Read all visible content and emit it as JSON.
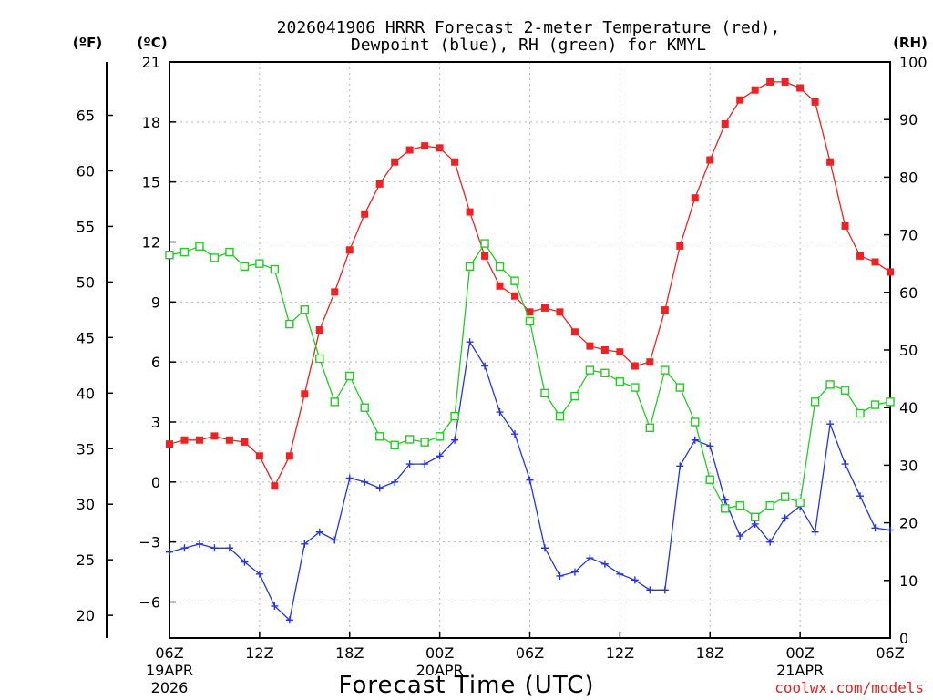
{
  "chart_data": {
    "type": "line",
    "title_line1": "2026041906 HRRR Forecast 2-meter Temperature (red),",
    "title_line2": "Dewpoint (blue), RH (green) for KMYL",
    "xlabel": "Forecast Time (UTC)",
    "unit_f": "(ºF)",
    "unit_c": "(ºC)",
    "unit_rh": "(RH)",
    "credit": "coolwx.com/models",
    "x_hours": [
      0,
      1,
      2,
      3,
      4,
      5,
      6,
      7,
      8,
      9,
      10,
      11,
      12,
      13,
      14,
      15,
      16,
      17,
      18,
      19,
      20,
      21,
      22,
      23,
      24,
      25,
      26,
      27,
      28,
      29,
      30,
      31,
      32,
      33,
      34,
      35,
      36,
      37,
      38,
      39,
      40,
      41,
      42,
      43,
      44,
      45,
      46,
      47,
      48
    ],
    "xlim": [
      0,
      48
    ],
    "x_ticks": [
      {
        "hour": 0,
        "label": "06Z",
        "date": "19APR",
        "year": "2026"
      },
      {
        "hour": 6,
        "label": "12Z"
      },
      {
        "hour": 12,
        "label": "18Z"
      },
      {
        "hour": 18,
        "label": "00Z",
        "date": "20APR"
      },
      {
        "hour": 24,
        "label": "06Z"
      },
      {
        "hour": 30,
        "label": "12Z"
      },
      {
        "hour": 36,
        "label": "18Z"
      },
      {
        "hour": 42,
        "label": "00Z",
        "date": "21APR"
      },
      {
        "hour": 48,
        "label": "06Z"
      }
    ],
    "ylim_c": [
      -7.8,
      21
    ],
    "yticks_c": [
      {
        "v": 21,
        "label": "21"
      },
      {
        "v": 18,
        "label": "18"
      },
      {
        "v": 15,
        "label": "15"
      },
      {
        "v": 12,
        "label": "12"
      },
      {
        "v": 9,
        "label": "9"
      },
      {
        "v": 6,
        "label": "6"
      },
      {
        "v": 3,
        "label": "3"
      },
      {
        "v": 0,
        "label": "0"
      },
      {
        "v": -3,
        "label": "−3"
      },
      {
        "v": -6,
        "label": "−6"
      }
    ],
    "yticks_f": [
      {
        "v": 65,
        "label": "65"
      },
      {
        "v": 60,
        "label": "60"
      },
      {
        "v": 55,
        "label": "55"
      },
      {
        "v": 50,
        "label": "50"
      },
      {
        "v": 45,
        "label": "45"
      },
      {
        "v": 40,
        "label": "40"
      },
      {
        "v": 35,
        "label": "35"
      },
      {
        "v": 30,
        "label": "30"
      },
      {
        "v": 25,
        "label": "25"
      },
      {
        "v": 20,
        "label": "20"
      }
    ],
    "ylim_rh": [
      0,
      100
    ],
    "yticks_rh": [
      {
        "v": 100,
        "label": "100"
      },
      {
        "v": 90,
        "label": "90"
      },
      {
        "v": 80,
        "label": "80"
      },
      {
        "v": 70,
        "label": "70"
      },
      {
        "v": 60,
        "label": "60"
      },
      {
        "v": 50,
        "label": "50"
      },
      {
        "v": 40,
        "label": "40"
      },
      {
        "v": 30,
        "label": "30"
      },
      {
        "v": 20,
        "label": "20"
      },
      {
        "v": 10,
        "label": "10"
      },
      {
        "v": 0,
        "label": "0"
      }
    ],
    "series": [
      {
        "name": "Temperature (°C)",
        "color": "#ee2222",
        "marker": "filled-square",
        "axis": "c",
        "values": [
          1.9,
          2.1,
          2.1,
          2.3,
          2.1,
          2.0,
          1.3,
          -0.2,
          1.3,
          4.4,
          7.6,
          9.5,
          11.6,
          13.4,
          14.9,
          16.0,
          16.6,
          16.8,
          16.7,
          16.0,
          13.5,
          11.3,
          9.8,
          9.3,
          8.5,
          8.7,
          8.5,
          7.5,
          6.8,
          6.6,
          6.5,
          5.8,
          6.0,
          8.6,
          11.8,
          14.2,
          16.1,
          17.9,
          19.1,
          19.6,
          20.0,
          20.0,
          19.7,
          19.0,
          16.0,
          12.8,
          11.3,
          11.0,
          10.5
        ]
      },
      {
        "name": "Dewpoint (°C)",
        "color": "#2233ee",
        "marker": "plus",
        "axis": "c",
        "values": [
          -3.5,
          -3.3,
          -3.1,
          -3.3,
          -3.3,
          -4.0,
          -4.6,
          -6.2,
          -6.9,
          -3.1,
          -2.5,
          -2.9,
          0.2,
          0.0,
          -0.3,
          0.0,
          0.9,
          0.9,
          1.3,
          2.1,
          7.0,
          5.8,
          3.5,
          2.4,
          0.1,
          -3.3,
          -4.7,
          -4.5,
          -3.8,
          -4.1,
          -4.6,
          -4.9,
          -5.4,
          -5.4,
          0.8,
          2.1,
          1.8,
          -0.9,
          -2.7,
          -2.1,
          -3.0,
          -1.8,
          -1.2,
          -2.5,
          2.9,
          0.9,
          -0.7,
          -2.3,
          -2.4
        ]
      },
      {
        "name": "RH (%)",
        "color": "#22cc22",
        "marker": "open-square",
        "axis": "rh",
        "values": [
          66.5,
          67.0,
          68.0,
          66.0,
          67.0,
          64.5,
          65.0,
          64.0,
          54.5,
          57.0,
          48.5,
          41.0,
          45.5,
          40.0,
          35.0,
          33.5,
          34.5,
          34.0,
          35.0,
          38.5,
          64.5,
          68.5,
          64.5,
          62.0,
          55.0,
          42.5,
          38.5,
          42.0,
          46.5,
          46.0,
          44.5,
          43.5,
          36.5,
          46.5,
          43.5,
          37.5,
          27.5,
          22.5,
          23.0,
          21.0,
          23.0,
          24.5,
          23.5,
          41.0,
          44.0,
          43.0,
          39.0,
          40.5,
          41.0
        ]
      }
    ]
  }
}
